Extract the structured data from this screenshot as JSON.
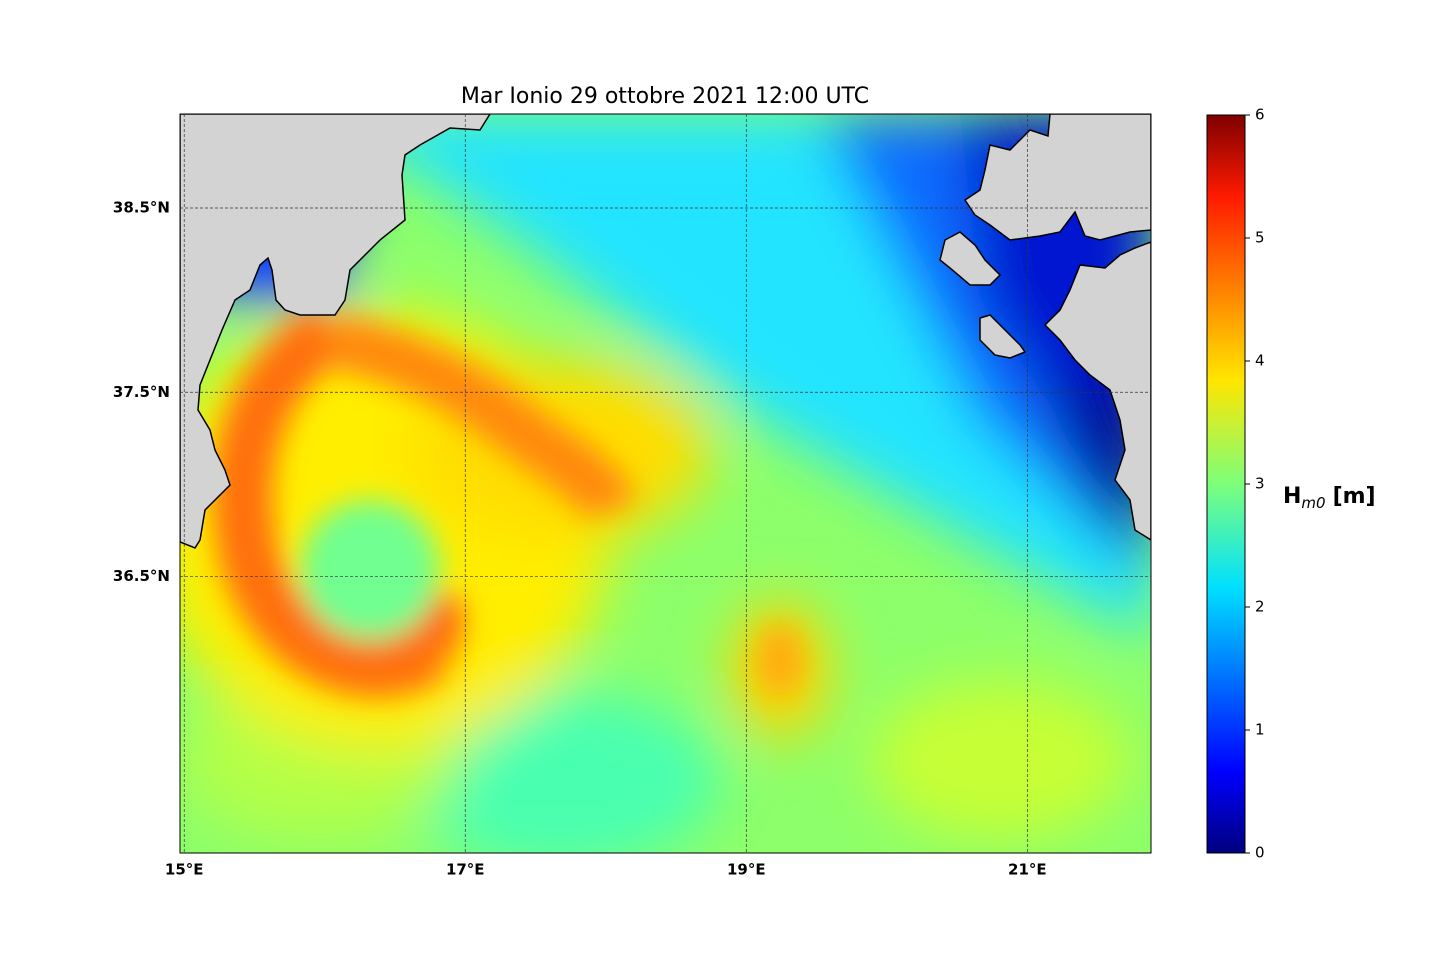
{
  "map": {
    "title": "Mar Ionio  29 ottobre 2021  12:00 UTC",
    "xlim": [
      14.97,
      21.88
    ],
    "ylim": [
      35.0,
      39.01
    ],
    "xticks": [
      {
        "value": 15,
        "label": "15°E"
      },
      {
        "value": 17,
        "label": "17°E"
      },
      {
        "value": 19,
        "label": "19°E"
      },
      {
        "value": 21,
        "label": "21°E"
      }
    ],
    "yticks": [
      {
        "value": 36.5,
        "label": "36.5°N"
      },
      {
        "value": 37.5,
        "label": "37.5°N"
      },
      {
        "value": 38.5,
        "label": "38.5°N"
      }
    ],
    "grid": true
  },
  "colorbar": {
    "label_main": "H",
    "label_sub": "m0",
    "label_unit": "[m]",
    "lim": [
      0,
      6
    ],
    "ticks": [
      0,
      1,
      2,
      3,
      4,
      5,
      6
    ]
  }
}
